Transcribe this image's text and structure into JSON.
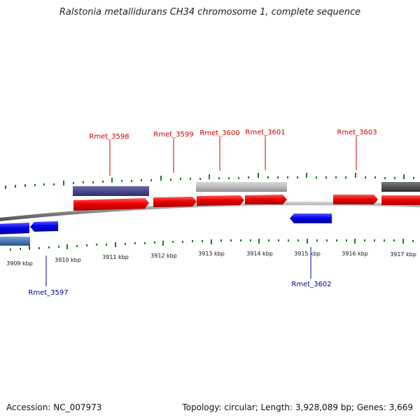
{
  "title": "Ralstonia metallidurans CH34 chromosome 1, complete sequence",
  "footer": {
    "accession": "Accession: NC_007973",
    "summary": "Topology: circular; Length: 3,928,089 bp; Genes: 3,669"
  },
  "scale": {
    "ticks": [
      "3909 kbp",
      "3910 kbp",
      "3911 kbp",
      "3912 kbp",
      "3913 kbp",
      "3914 kbp",
      "3915 kbp",
      "3916 kbp",
      "3917 kbp"
    ]
  },
  "genes_top": [
    {
      "label": "Rmet_3598",
      "color": "#cc0000"
    },
    {
      "label": "Rmet_3599",
      "color": "#cc0000"
    },
    {
      "label": "Rmet_3600",
      "color": "#cc0000"
    },
    {
      "label": "Rmet_3601",
      "color": "#cc0000"
    },
    {
      "label": "Rmet_3603",
      "color": "#cc0000"
    }
  ],
  "genes_bottom": [
    {
      "label": "Rmet_3597",
      "color": "#000099"
    },
    {
      "label": "Rmet_3602",
      "color": "#000099"
    }
  ],
  "colors": {
    "forward_gene": "#ee0000",
    "reverse_gene": "#0000ee",
    "tick": "#1a7a1a",
    "backbone": "#888888"
  }
}
